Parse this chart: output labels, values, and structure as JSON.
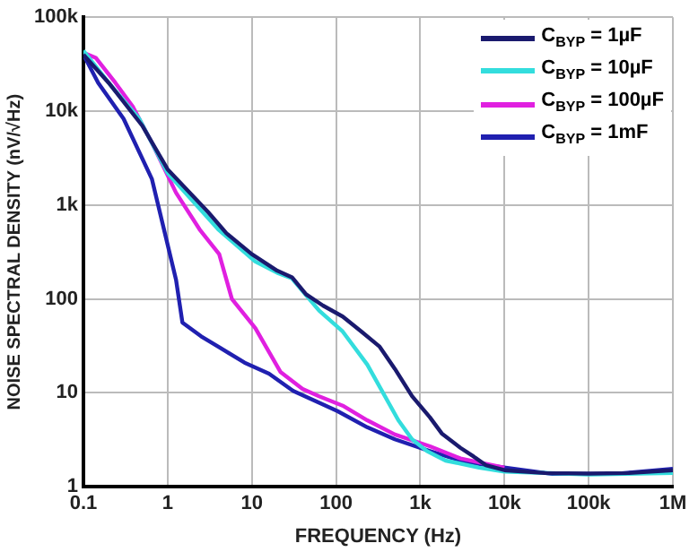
{
  "chart_data": {
    "type": "line",
    "xlabel": "FREQUENCY (Hz)",
    "ylabel": "NOISE SPECTRAL DENSITY (nV/√Hz)",
    "log": "xy",
    "grid": true,
    "legend": "top right",
    "marker": "none",
    "line_style": "solid",
    "xlim": [
      0.1,
      1000000
    ],
    "ylim": [
      1,
      100000
    ],
    "xticks": [
      0.1,
      1,
      10,
      100,
      {
        "value": 1000,
        "label": "1k"
      },
      {
        "value": 10000,
        "label": "10k"
      },
      {
        "value": 100000,
        "label": "100k"
      },
      {
        "value": 1000000,
        "label": "1M"
      }
    ],
    "yticks": [
      1,
      10,
      100,
      {
        "value": 1000,
        "label": "1k"
      },
      {
        "value": 10000,
        "label": "10k"
      },
      {
        "value": 100000,
        "label": "100k"
      }
    ],
    "series": [
      {
        "name": "C$_{BYP}$ = 1µF",
        "color": "#1a1a6e",
        "x": [
          0.1,
          0.2,
          0.5,
          1,
          3,
          5,
          10,
          20,
          30,
          44,
          70,
          120,
          200,
          330,
          500,
          800,
          1300,
          1800,
          3000,
          4300,
          6000,
          10000,
          30000,
          100000,
          300000,
          1000000
        ],
        "values": [
          40000,
          20000,
          7000,
          2400,
          850,
          500,
          300,
          200,
          170,
          112,
          85,
          65,
          45,
          31,
          18,
          9.2,
          5.5,
          3.7,
          2.6,
          2.1,
          1.7,
          1.5,
          1.4,
          1.38,
          1.4,
          1.5
        ]
      },
      {
        "name": "C$_{BYP}$ = 10µF",
        "color": "#33dddd",
        "x": [
          0.1,
          0.2,
          0.46,
          1,
          2,
          4,
          11,
          20,
          30,
          44,
          63,
          120,
          235,
          550,
          800,
          1200,
          2000,
          5000,
          10000,
          100000,
          1000000
        ],
        "values": [
          44000,
          20000,
          8300,
          2200,
          1100,
          550,
          250,
          190,
          165,
          110,
          75,
          45,
          20,
          5.1,
          3.2,
          2.4,
          1.9,
          1.6,
          1.45,
          1.35,
          1.4
        ]
      },
      {
        "name": "C$_{BYP}$ = 100µF",
        "color": "#e020e0",
        "x": [
          0.1,
          0.14,
          0.24,
          0.39,
          0.65,
          1.26,
          2.4,
          4.1,
          5.8,
          11,
          22,
          40,
          63,
          120,
          235,
          500,
          1300,
          3000,
          10000
        ],
        "values": [
          42000,
          37000,
          20000,
          11000,
          4600,
          1350,
          550,
          300,
          100,
          49,
          16.6,
          11,
          9.2,
          7.3,
          5.1,
          3.6,
          2.7,
          2,
          1.6
        ]
      },
      {
        "name": "C$_{BYP}$ = 1mF",
        "color": "#2020b0",
        "x": [
          0.1,
          0.15,
          0.3,
          0.65,
          1.26,
          1.5,
          2.5,
          4,
          8.2,
          16,
          31,
          60,
          104,
          235,
          500,
          1300,
          3000,
          6000,
          37000,
          200000,
          1000000
        ],
        "values": [
          40000,
          20000,
          8300,
          1900,
          160,
          56,
          40,
          31,
          21,
          16,
          10.5,
          8,
          6.4,
          4.3,
          3.2,
          2.4,
          1.9,
          1.7,
          1.37,
          1.37,
          1.55
        ]
      }
    ]
  }
}
